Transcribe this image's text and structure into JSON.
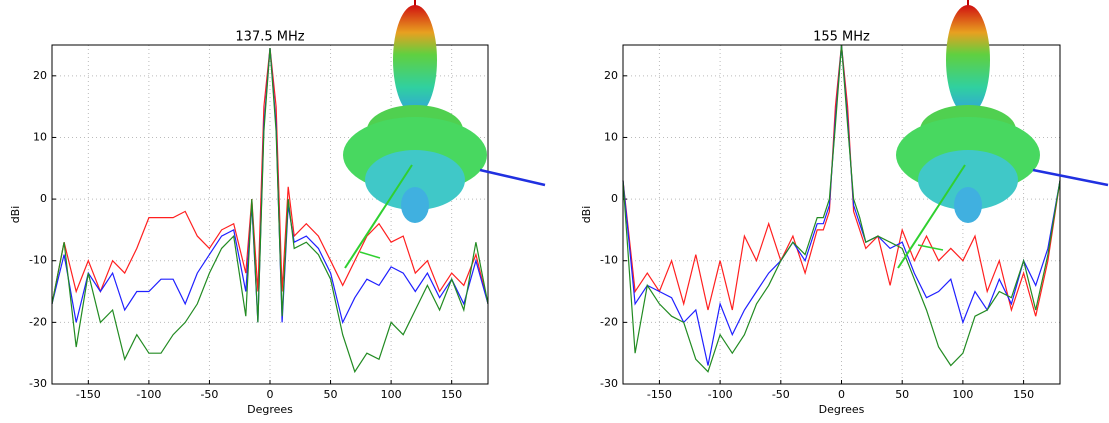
{
  "chart_data": [
    {
      "type": "line",
      "title": "137.5 MHz",
      "xlabel": "Degrees",
      "ylabel": "dBi",
      "x": [
        -180,
        -170,
        -160,
        -150,
        -140,
        -130,
        -120,
        -110,
        -100,
        -90,
        -80,
        -70,
        -60,
        -50,
        -40,
        -30,
        -20,
        -15,
        -10,
        -5,
        0,
        5,
        10,
        15,
        20,
        30,
        40,
        50,
        60,
        70,
        80,
        90,
        100,
        110,
        120,
        130,
        140,
        150,
        160,
        170,
        180
      ],
      "series": [
        {
          "color": "#ff2020",
          "values": [
            -17,
            -7,
            -15,
            -10,
            -15,
            -10,
            -12,
            -8,
            -3,
            -3,
            -3,
            -2,
            -6,
            -8,
            -5,
            -4,
            -12,
            0,
            -15,
            15,
            24.5,
            15,
            -15,
            2,
            -6,
            -4,
            -6,
            -10,
            -14,
            -10,
            -6,
            -4,
            -7,
            -6,
            -12,
            -10,
            -15,
            -12,
            -14,
            -9,
            -17
          ]
        },
        {
          "color": "#2020ff",
          "values": [
            -17,
            -9,
            -20,
            -12,
            -15,
            -12,
            -18,
            -15,
            -15,
            -13,
            -13,
            -17,
            -12,
            -9,
            -6,
            -5,
            -15,
            -1,
            -20,
            12,
            24.5,
            12,
            -20,
            -1,
            -7,
            -6,
            -8,
            -12,
            -20,
            -16,
            -13,
            -14,
            -11,
            -12,
            -15,
            -12,
            -16,
            -13,
            -17,
            -10,
            -17
          ]
        },
        {
          "color": "#228b22",
          "values": [
            -17,
            -7,
            -24,
            -12,
            -20,
            -18,
            -26,
            -22,
            -25,
            -25,
            -22,
            -20,
            -17,
            -12,
            -8,
            -6,
            -19,
            0,
            -20,
            11,
            24.5,
            11,
            -19,
            0,
            -8,
            -7,
            -9,
            -13,
            -22,
            -28,
            -25,
            -26,
            -20,
            -22,
            -18,
            -14,
            -18,
            -13,
            -18,
            -7,
            -17
          ]
        }
      ],
      "xlim": [
        -180,
        180
      ],
      "ylim": [
        -30,
        25
      ],
      "xticks": [
        -150,
        -100,
        -50,
        0,
        50,
        100,
        150
      ],
      "yticks": [
        -30,
        -20,
        -10,
        0,
        10,
        20
      ],
      "grid": true
    },
    {
      "type": "line",
      "title": "155 MHz",
      "xlabel": "Degrees",
      "ylabel": "dBi",
      "x": [
        -180,
        -170,
        -160,
        -150,
        -140,
        -130,
        -120,
        -110,
        -100,
        -90,
        -80,
        -70,
        -60,
        -50,
        -40,
        -30,
        -20,
        -15,
        -10,
        -5,
        0,
        5,
        10,
        15,
        20,
        30,
        40,
        50,
        60,
        70,
        80,
        90,
        100,
        110,
        120,
        130,
        140,
        150,
        160,
        170,
        180
      ],
      "series": [
        {
          "color": "#ff2020",
          "values": [
            3,
            -15,
            -12,
            -15,
            -10,
            -17,
            -9,
            -18,
            -10,
            -18,
            -6,
            -10,
            -4,
            -10,
            -6,
            -12,
            -5,
            -5,
            -2,
            15,
            25,
            15,
            -2,
            -5,
            -8,
            -6,
            -14,
            -5,
            -10,
            -6,
            -10,
            -8,
            -10,
            -6,
            -15,
            -10,
            -18,
            -12,
            -19,
            -10,
            3
          ]
        },
        {
          "color": "#2020ff",
          "values": [
            3,
            -17,
            -14,
            -15,
            -16,
            -20,
            -18,
            -27,
            -17,
            -22,
            -18,
            -15,
            -12,
            -10,
            -7,
            -10,
            -4,
            -4,
            -1,
            13,
            25,
            13,
            -1,
            -4,
            -7,
            -6,
            -8,
            -7,
            -12,
            -16,
            -15,
            -13,
            -20,
            -15,
            -18,
            -13,
            -17,
            -10,
            -14,
            -8,
            3
          ]
        },
        {
          "color": "#228b22",
          "values": [
            3,
            -25,
            -14,
            -17,
            -19,
            -20,
            -26,
            -28,
            -22,
            -25,
            -22,
            -17,
            -14,
            -10,
            -7,
            -9,
            -3,
            -3,
            0,
            12,
            25,
            12,
            0,
            -3,
            -7,
            -6,
            -7,
            -8,
            -13,
            -18,
            -24,
            -27,
            -25,
            -19,
            -18,
            -15,
            -16,
            -10,
            -18,
            -9,
            3
          ]
        }
      ],
      "xlim": [
        -180,
        180
      ],
      "ylim": [
        -30,
        25
      ],
      "xticks": [
        -150,
        -100,
        -50,
        0,
        50,
        100,
        150
      ],
      "yticks": [
        -30,
        -20,
        -10,
        0,
        10,
        20
      ],
      "grid": true
    }
  ]
}
